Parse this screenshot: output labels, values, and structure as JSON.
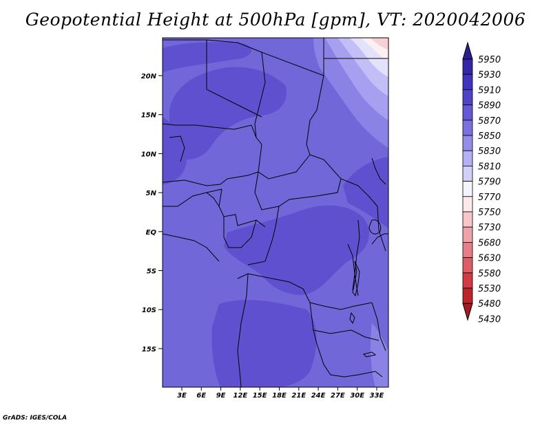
{
  "title": "Geopotential Height at 500hPa [gpm], VT: 2020042006",
  "footer": "GrADS: IGES/COLA",
  "map": {
    "lat_labels": [
      "20N",
      "15N",
      "10N",
      "5N",
      "EQ",
      "5S",
      "10S",
      "15S"
    ],
    "lon_labels": [
      "3E",
      "6E",
      "9E",
      "12E",
      "15E",
      "18E",
      "21E",
      "24E",
      "27E",
      "30E",
      "33E"
    ],
    "fill_colors": {
      "c5870": "#7167d8",
      "c5890": "#5f50cf",
      "c5910": "#4a3fc6",
      "c5850": "#8a82e4",
      "c5830": "#a79ff0",
      "c5810": "#c3beF5",
      "c5790": "#e4e2fb",
      "c5770": "#fbf0f2",
      "c5750": "#f8cfd3"
    }
  },
  "colorbar": {
    "levels": [
      "5950",
      "5930",
      "5910",
      "5890",
      "5870",
      "5850",
      "5830",
      "5810",
      "5790",
      "5770",
      "5750",
      "5730",
      "5680",
      "5630",
      "5580",
      "5530",
      "5480",
      "5430"
    ],
    "colors": [
      "#2a1e90",
      "#3526a8",
      "#4033bf",
      "#5043c8",
      "#6558d4",
      "#7a70de",
      "#968de9",
      "#b5aff3",
      "#d3d0f8",
      "#f4f4fe",
      "#fde8ec",
      "#f7c6cb",
      "#eea3aa",
      "#e57f87",
      "#dc5d66",
      "#d23a44",
      "#bf2229",
      "#a51a1f"
    ]
  }
}
